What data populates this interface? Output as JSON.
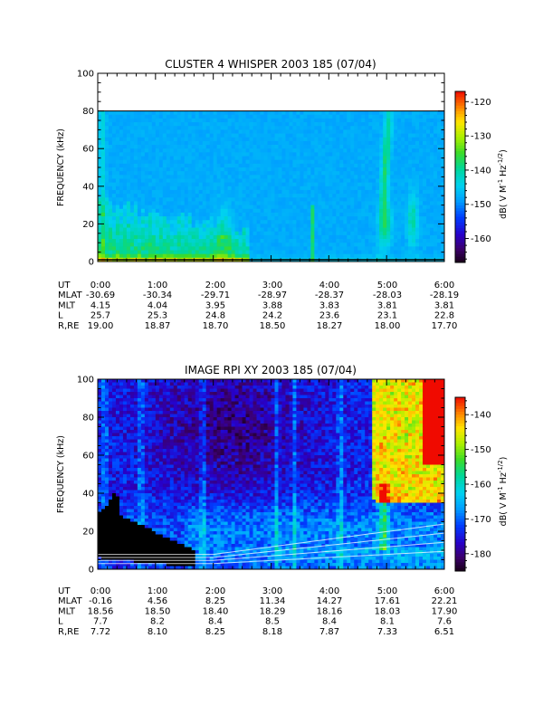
{
  "chart_data": [
    {
      "type": "heatmap",
      "title": "CLUSTER 4 WHISPER 2003 185 (07/04)",
      "ylabel": "FREQUENCY (kHz)",
      "ylim": [
        0,
        100
      ],
      "yticks": [
        0,
        20,
        40,
        60,
        80,
        100
      ],
      "x_ticks": [
        "0:00",
        "1:00",
        "2:00",
        "3:00",
        "4:00",
        "5:00",
        "6:00"
      ],
      "colorbar": {
        "label_parts": [
          "dB( V M",
          "-1",
          " Hz",
          "-1/2",
          ")"
        ],
        "range": [
          -167,
          -117
        ],
        "ticks": [
          -160,
          -150,
          -140,
          -130,
          -120
        ]
      },
      "background_db": -148,
      "data_upper_frequency_khz": 80,
      "ephemeris": {
        "labels": [
          "UT",
          "MLAT",
          "MLT",
          "L",
          "R,RE"
        ],
        "columns": [
          [
            "0:00",
            "-30.69",
            "4.15",
            "25.7",
            "19.00"
          ],
          [
            "1:00",
            "-30.34",
            "4.04",
            "25.3",
            "18.87"
          ],
          [
            "2:00",
            "-29.71",
            "3.95",
            "24.8",
            "18.70"
          ],
          [
            "3:00",
            "-28.97",
            "3.88",
            "24.2",
            "18.50"
          ],
          [
            "4:00",
            "-28.37",
            "3.83",
            "23.6",
            "18.27"
          ],
          [
            "5:00",
            "-28.03",
            "3.81",
            "23.1",
            "18.00"
          ],
          [
            "6:00",
            "-28.19",
            "3.81",
            "22.8",
            "17.70"
          ]
        ]
      }
    },
    {
      "type": "heatmap",
      "title": "IMAGE RPI XY 2003 185 (07/04)",
      "ylabel": "FREQUENCY (kHz)",
      "ylim": [
        0,
        100
      ],
      "yticks": [
        0,
        20,
        40,
        60,
        80,
        100
      ],
      "x_ticks": [
        "0:00",
        "1:00",
        "2:00",
        "3:00",
        "4:00",
        "5:00",
        "6:00"
      ],
      "colorbar": {
        "label_parts": [
          "dB( V M",
          "-1",
          " Hz",
          "-1/2",
          ")"
        ],
        "range": [
          -185,
          -135
        ],
        "ticks": [
          -180,
          -170,
          -160,
          -150,
          -140
        ]
      },
      "background_db": -174,
      "ephemeris": {
        "labels": [
          "UT",
          "MLAT",
          "MLT",
          "L",
          "R,RE"
        ],
        "columns": [
          [
            "0:00",
            "-0.16",
            "18.56",
            "7.7",
            "7.72"
          ],
          [
            "1:00",
            "4.56",
            "18.50",
            "8.2",
            "8.10"
          ],
          [
            "2:00",
            "8.25",
            "18.40",
            "8.4",
            "8.25"
          ],
          [
            "3:00",
            "11.34",
            "18.29",
            "8.5",
            "8.18"
          ],
          [
            "4:00",
            "14.27",
            "18.16",
            "8.4",
            "7.87"
          ],
          [
            "5:00",
            "17.61",
            "18.03",
            "8.1",
            "7.33"
          ],
          [
            "6:00",
            "22.21",
            "17.90",
            "7.6",
            "6.51"
          ]
        ]
      }
    }
  ]
}
